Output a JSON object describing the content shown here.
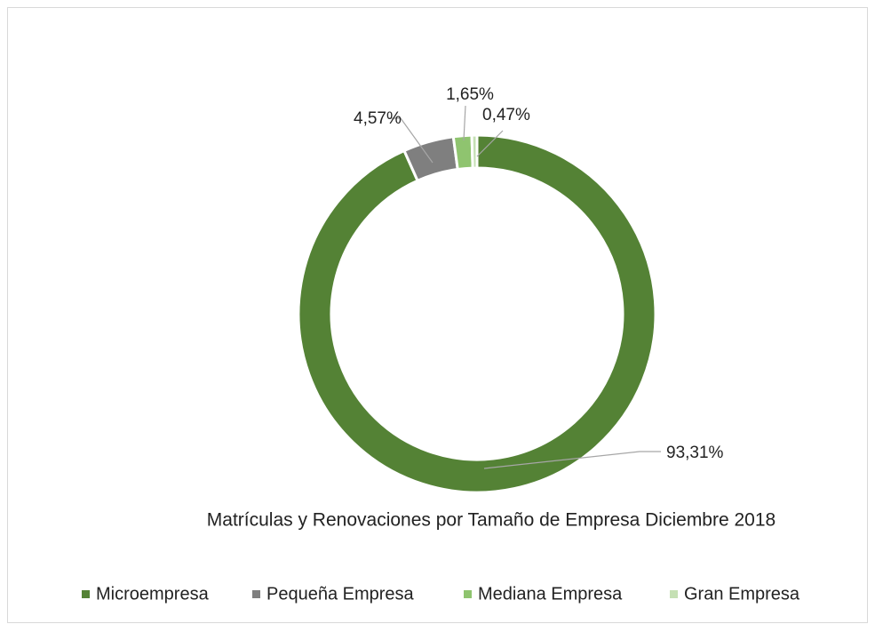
{
  "chart_data": {
    "type": "donut",
    "title": "Matrículas y Renovaciones por Tamaño de Empresa  Diciembre 2018",
    "categories": [
      "Microempresa",
      "Pequeña Empresa",
      "Mediana Empresa",
      "Gran Empresa"
    ],
    "values": [
      93.31,
      4.57,
      1.65,
      0.47
    ],
    "value_labels": [
      "93,31%",
      "4,57%",
      "1,65%",
      "0,47%"
    ],
    "colors": [
      "#548235",
      "#7f7f7f",
      "#8fc46f",
      "#c5e0b4"
    ],
    "legend": "bottom"
  }
}
